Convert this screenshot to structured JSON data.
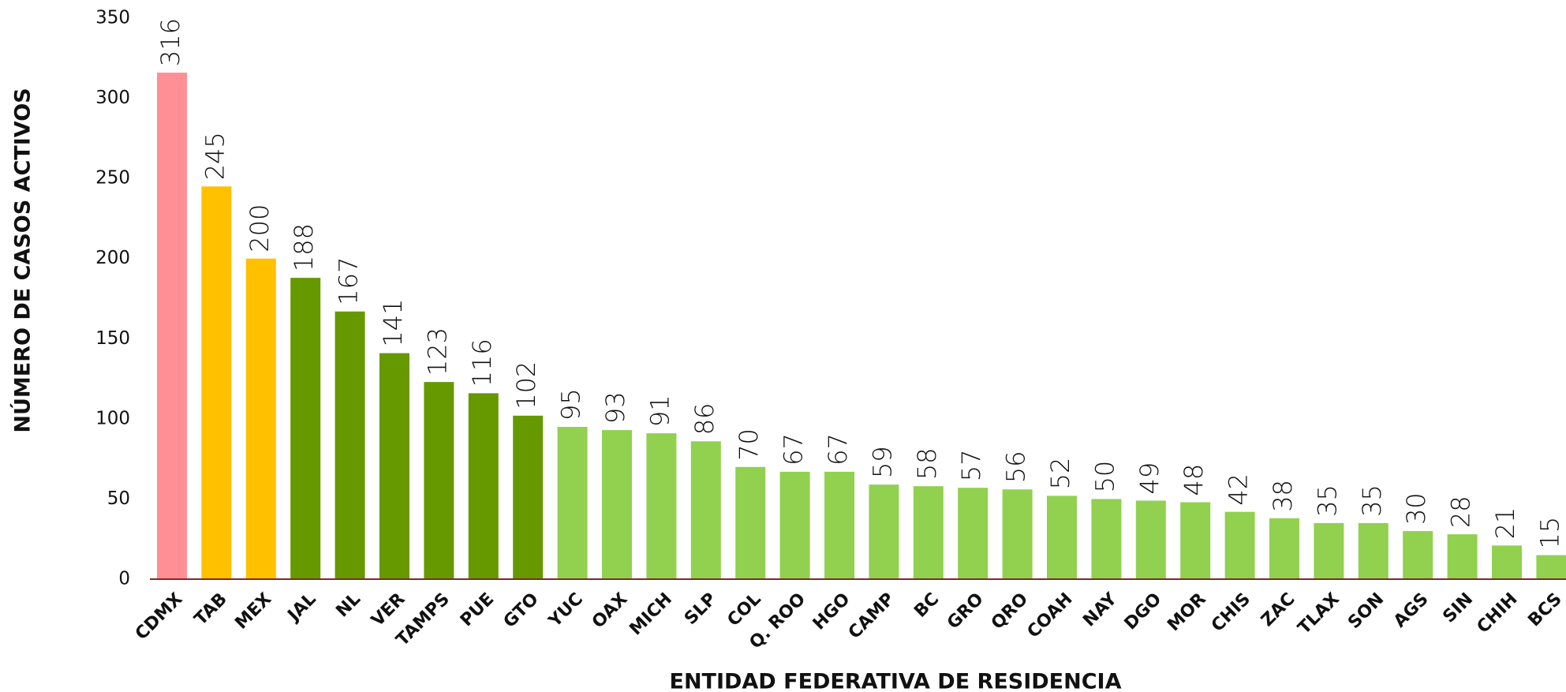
{
  "chart_data": {
    "type": "bar",
    "xlabel": "ENTIDAD FEDERATIVA DE RESIDENCIA",
    "ylabel": "NÚMERO DE CASOS ACTIVOS",
    "categories": [
      "CDMX",
      "TAB",
      "MEX",
      "JAL",
      "NL",
      "VER",
      "TAMPS",
      "PUE",
      "GTO",
      "YUC",
      "OAX",
      "MICH",
      "SLP",
      "COL",
      "Q. ROO",
      "HGO",
      "CAMP",
      "BC",
      "GRO",
      "QRO",
      "COAH",
      "NAY",
      "DGO",
      "MOR",
      "CHIS",
      "ZAC",
      "TLAX",
      "SON",
      "AGS",
      "SIN",
      "CHIH",
      "BCS"
    ],
    "values": [
      316,
      245,
      200,
      188,
      167,
      141,
      123,
      116,
      102,
      95,
      93,
      91,
      86,
      70,
      67,
      67,
      59,
      58,
      57,
      56,
      52,
      50,
      49,
      48,
      42,
      38,
      35,
      35,
      30,
      28,
      21,
      15
    ],
    "colors": [
      "#ff8f94",
      "#ffc000",
      "#ffc000",
      "#669900",
      "#669900",
      "#669900",
      "#669900",
      "#669900",
      "#669900",
      "#92d050",
      "#92d050",
      "#92d050",
      "#92d050",
      "#92d050",
      "#92d050",
      "#92d050",
      "#92d050",
      "#92d050",
      "#92d050",
      "#92d050",
      "#92d050",
      "#92d050",
      "#92d050",
      "#92d050",
      "#92d050",
      "#92d050",
      "#92d050",
      "#92d050",
      "#92d050",
      "#92d050",
      "#92d050",
      "#92d050"
    ],
    "ylim": [
      0,
      350
    ],
    "yticks": [
      0,
      50,
      100,
      150,
      200,
      250,
      300,
      350
    ],
    "grid": false
  }
}
